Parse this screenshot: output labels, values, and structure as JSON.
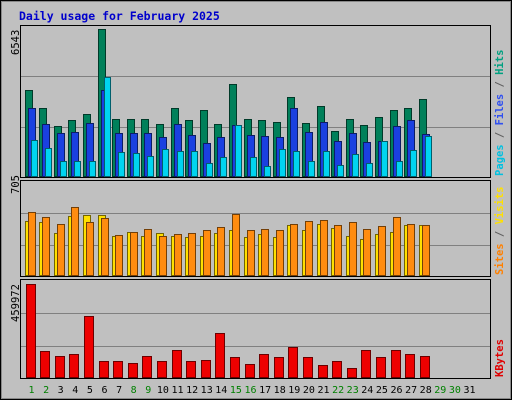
{
  "chart_data": {
    "type": "bar",
    "title": "Daily usage for February 2025",
    "categories": [
      "1",
      "2",
      "3",
      "4",
      "5",
      "6",
      "7",
      "8",
      "9",
      "10",
      "11",
      "12",
      "13",
      "14",
      "15",
      "16",
      "17",
      "18",
      "19",
      "20",
      "21",
      "22",
      "23",
      "24",
      "25",
      "26",
      "27",
      "28",
      "29",
      "30",
      "31"
    ],
    "weekend_days": [
      "1",
      "2",
      "8",
      "9",
      "15",
      "16",
      "22",
      "23",
      "29",
      "30"
    ],
    "weekend_color": "#008000",
    "weekday_color": "#000000",
    "panels": [
      {
        "id": "top",
        "ymax_label": "6543",
        "ylim": [
          0,
          6543
        ],
        "legend": [
          {
            "text": "Pages",
            "color": "#00c0e0"
          },
          {
            "text": " / ",
            "color": "#606060"
          },
          {
            "text": "Files",
            "color": "#3050f0"
          },
          {
            "text": " / ",
            "color": "#606060"
          },
          {
            "text": "Hits",
            "color": "#00a080"
          }
        ],
        "series": [
          {
            "name": "Hits",
            "color": "#00805a",
            "values": [
              3850,
              3050,
              2250,
              2500,
              2800,
              6543,
              2550,
              2550,
              2550,
              2350,
              3050,
              2500,
              2950,
              2350,
              4100,
              2550,
              2500,
              2450,
              3550,
              2400,
              3150,
              2050,
              2550,
              2300,
              2650,
              2950,
              3050,
              3450,
              0,
              0,
              0
            ]
          },
          {
            "name": "Files",
            "color": "#1a40e0",
            "values": [
              3050,
              2350,
              1950,
              2000,
              2400,
              3850,
              1950,
              1950,
              1950,
              1750,
              2350,
              1850,
              1500,
              1750,
              2300,
              1850,
              1800,
              1750,
              3050,
              2000,
              2450,
              1600,
              1950,
              1550,
              1600,
              2250,
              2500,
              1900,
              0,
              0,
              0
            ]
          },
          {
            "name": "Pages",
            "color": "#00d4f0",
            "values": [
              1650,
              1300,
              700,
              700,
              700,
              4400,
              1100,
              1050,
              950,
              1250,
              1150,
              1150,
              600,
              900,
              2300,
              900,
              500,
              1250,
              1150,
              700,
              1150,
              550,
              1000,
              600,
              1600,
              700,
              1200,
              1800,
              0,
              0,
              0
            ]
          }
        ]
      },
      {
        "id": "middle",
        "ymax_label": "705",
        "ylim": [
          0,
          705
        ],
        "legend": [
          {
            "text": "Sites",
            "color": "#ff8000"
          },
          {
            "text": " / ",
            "color": "#606060"
          },
          {
            "text": "Visits",
            "color": "#ffe000"
          }
        ],
        "series": [
          {
            "name": "Visits",
            "color": "#ffe000",
            "values": [
              420,
              410,
              330,
              460,
              470,
              465,
              310,
              340,
              310,
              330,
              310,
              300,
              310,
              330,
              355,
              300,
              320,
              300,
              390,
              350,
              400,
              370,
              310,
              280,
              320,
              340,
              390,
              390,
              0,
              0,
              0
            ]
          },
          {
            "name": "Sites",
            "color": "#ff8c10",
            "values": [
              490,
              450,
              400,
              525,
              415,
              445,
              315,
              340,
              360,
              310,
              320,
              330,
              350,
              375,
              475,
              355,
              360,
              355,
              400,
              420,
              430,
              390,
              410,
              360,
              380,
              450,
              400,
              390,
              0,
              0,
              0
            ]
          }
        ]
      },
      {
        "id": "bottom",
        "ymax_label": "459972",
        "ylim": [
          0,
          459972
        ],
        "legend": [
          {
            "text": "KBytes",
            "color": "#e00000"
          }
        ],
        "series": [
          {
            "name": "KBytes",
            "color": "#ee0000",
            "values": [
              459972,
              130000,
              110000,
              115000,
              305000,
              85000,
              85000,
              75000,
              110000,
              85000,
              135000,
              85000,
              90000,
              220000,
              105000,
              70000,
              115000,
              105000,
              150000,
              105000,
              65000,
              85000,
              50000,
              135000,
              105000,
              135000,
              115000,
              110000,
              0,
              0,
              0
            ]
          }
        ]
      }
    ]
  }
}
